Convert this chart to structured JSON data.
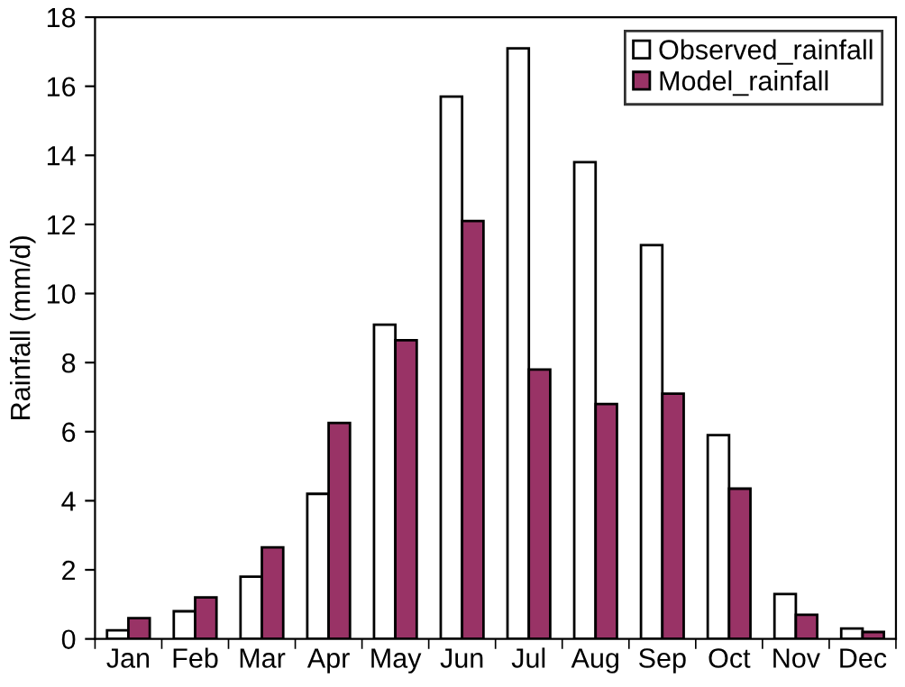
{
  "chart_data": {
    "type": "bar",
    "ylabel": "Rainfall (mm/d)",
    "categories": [
      "Jan",
      "Feb",
      "Mar",
      "Apr",
      "May",
      "Jun",
      "Jul",
      "Aug",
      "Sep",
      "Oct",
      "Nov",
      "Dec"
    ],
    "series": [
      {
        "name": "Observed_rainfall",
        "color": "#ffffff",
        "values": [
          0.25,
          0.8,
          1.8,
          4.2,
          9.1,
          15.7,
          17.1,
          13.8,
          11.4,
          5.9,
          1.3,
          0.3
        ]
      },
      {
        "name": "Model_rainfall",
        "color": "#993366",
        "values": [
          0.6,
          1.2,
          2.65,
          6.25,
          8.65,
          12.1,
          7.8,
          6.8,
          7.1,
          4.35,
          0.7,
          0.2
        ]
      }
    ],
    "ylim": [
      0,
      18
    ],
    "yticks": [
      0,
      2,
      4,
      6,
      8,
      10,
      12,
      14,
      16,
      18
    ],
    "grid": false,
    "legend": "top right"
  }
}
